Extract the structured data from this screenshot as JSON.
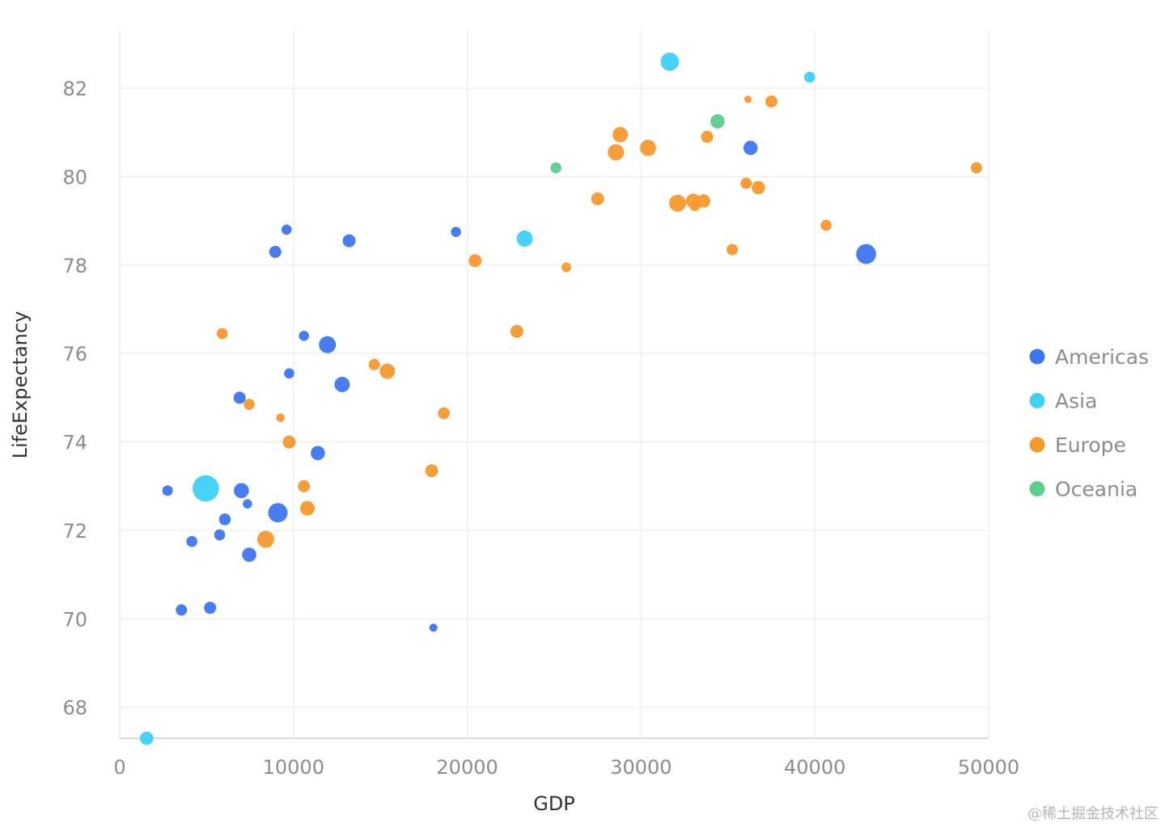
{
  "chart_data": {
    "type": "scatter",
    "xlabel": "GDP",
    "ylabel": "LifeExpectancy",
    "xlim": [
      0,
      50000
    ],
    "ylim": [
      67.3,
      83.3
    ],
    "xticks": [
      0,
      10000,
      20000,
      30000,
      40000,
      50000
    ],
    "yticks": [
      68,
      70,
      72,
      74,
      76,
      78,
      80,
      82
    ],
    "grid": true,
    "legend_position": "right",
    "size_encoding": "point radius varies by a third variable (unlabeled)",
    "series": [
      {
        "name": "Americas",
        "color": "#3d76f0",
        "points": [
          {
            "x": 42950,
            "y": 78.25,
            "size": 4.9
          },
          {
            "x": 36300,
            "y": 80.65,
            "size": 3.5
          },
          {
            "x": 19350,
            "y": 78.75,
            "size": 2.5
          },
          {
            "x": 13200,
            "y": 78.55,
            "size": 3.2
          },
          {
            "x": 9600,
            "y": 78.8,
            "size": 2.5
          },
          {
            "x": 8950,
            "y": 78.3,
            "size": 3.0
          },
          {
            "x": 10600,
            "y": 76.4,
            "size": 2.5
          },
          {
            "x": 11950,
            "y": 76.2,
            "size": 4.2
          },
          {
            "x": 9750,
            "y": 75.55,
            "size": 2.5
          },
          {
            "x": 12800,
            "y": 75.3,
            "size": 3.8
          },
          {
            "x": 6900,
            "y": 75.0,
            "size": 3.0
          },
          {
            "x": 11400,
            "y": 73.75,
            "size": 3.5
          },
          {
            "x": 2750,
            "y": 72.9,
            "size": 2.6
          },
          {
            "x": 7000,
            "y": 72.9,
            "size": 3.7
          },
          {
            "x": 7350,
            "y": 72.6,
            "size": 2.3
          },
          {
            "x": 9100,
            "y": 72.4,
            "size": 4.8
          },
          {
            "x": 6050,
            "y": 72.25,
            "size": 2.9
          },
          {
            "x": 4150,
            "y": 71.75,
            "size": 2.7
          },
          {
            "x": 5750,
            "y": 71.9,
            "size": 2.7
          },
          {
            "x": 7450,
            "y": 71.45,
            "size": 3.5
          },
          {
            "x": 3550,
            "y": 70.2,
            "size": 2.8
          },
          {
            "x": 5200,
            "y": 70.25,
            "size": 3.0
          },
          {
            "x": 18050,
            "y": 69.8,
            "size": 2.0
          }
        ]
      },
      {
        "name": "Asia",
        "color": "#3fd0f7",
        "points": [
          {
            "x": 31650,
            "y": 82.6,
            "size": 4.5
          },
          {
            "x": 39700,
            "y": 82.25,
            "size": 2.7
          },
          {
            "x": 23300,
            "y": 78.6,
            "size": 4.0
          },
          {
            "x": 4950,
            "y": 72.95,
            "size": 6.5
          },
          {
            "x": 1550,
            "y": 67.3,
            "size": 3.3
          }
        ]
      },
      {
        "name": "Europe",
        "color": "#f7992f",
        "points": [
          {
            "x": 36150,
            "y": 81.75,
            "size": 1.8
          },
          {
            "x": 37500,
            "y": 81.7,
            "size": 3.0
          },
          {
            "x": 28800,
            "y": 80.95,
            "size": 3.8
          },
          {
            "x": 30400,
            "y": 80.65,
            "size": 4.0
          },
          {
            "x": 28550,
            "y": 80.55,
            "size": 4.0
          },
          {
            "x": 33800,
            "y": 80.9,
            "size": 3.0
          },
          {
            "x": 49300,
            "y": 80.2,
            "size": 2.8
          },
          {
            "x": 36050,
            "y": 79.85,
            "size": 2.8
          },
          {
            "x": 36750,
            "y": 79.75,
            "size": 3.3
          },
          {
            "x": 27500,
            "y": 79.5,
            "size": 3.2
          },
          {
            "x": 32100,
            "y": 79.4,
            "size": 4.2
          },
          {
            "x": 33000,
            "y": 79.45,
            "size": 3.6
          },
          {
            "x": 33600,
            "y": 79.45,
            "size": 3.3
          },
          {
            "x": 33100,
            "y": 79.35,
            "size": 2.8
          },
          {
            "x": 40650,
            "y": 78.9,
            "size": 2.7
          },
          {
            "x": 20450,
            "y": 78.1,
            "size": 3.2
          },
          {
            "x": 35250,
            "y": 78.35,
            "size": 2.8
          },
          {
            "x": 25700,
            "y": 77.95,
            "size": 2.4
          },
          {
            "x": 5900,
            "y": 76.45,
            "size": 2.7
          },
          {
            "x": 22850,
            "y": 76.5,
            "size": 3.2
          },
          {
            "x": 14650,
            "y": 75.75,
            "size": 2.8
          },
          {
            "x": 15400,
            "y": 75.6,
            "size": 3.8
          },
          {
            "x": 7450,
            "y": 74.85,
            "size": 2.7
          },
          {
            "x": 18650,
            "y": 74.65,
            "size": 2.9
          },
          {
            "x": 9250,
            "y": 74.55,
            "size": 2.1
          },
          {
            "x": 9750,
            "y": 74.0,
            "size": 3.2
          },
          {
            "x": 17950,
            "y": 73.35,
            "size": 3.2
          },
          {
            "x": 10600,
            "y": 73.0,
            "size": 3.0
          },
          {
            "x": 10800,
            "y": 72.5,
            "size": 3.6
          },
          {
            "x": 8400,
            "y": 71.8,
            "size": 4.2
          }
        ]
      },
      {
        "name": "Oceania",
        "color": "#5ccf8e",
        "points": [
          {
            "x": 34400,
            "y": 81.25,
            "size": 3.5
          },
          {
            "x": 25100,
            "y": 80.2,
            "size": 2.7
          }
        ]
      }
    ]
  },
  "watermark": "@稀土掘金技术社区"
}
